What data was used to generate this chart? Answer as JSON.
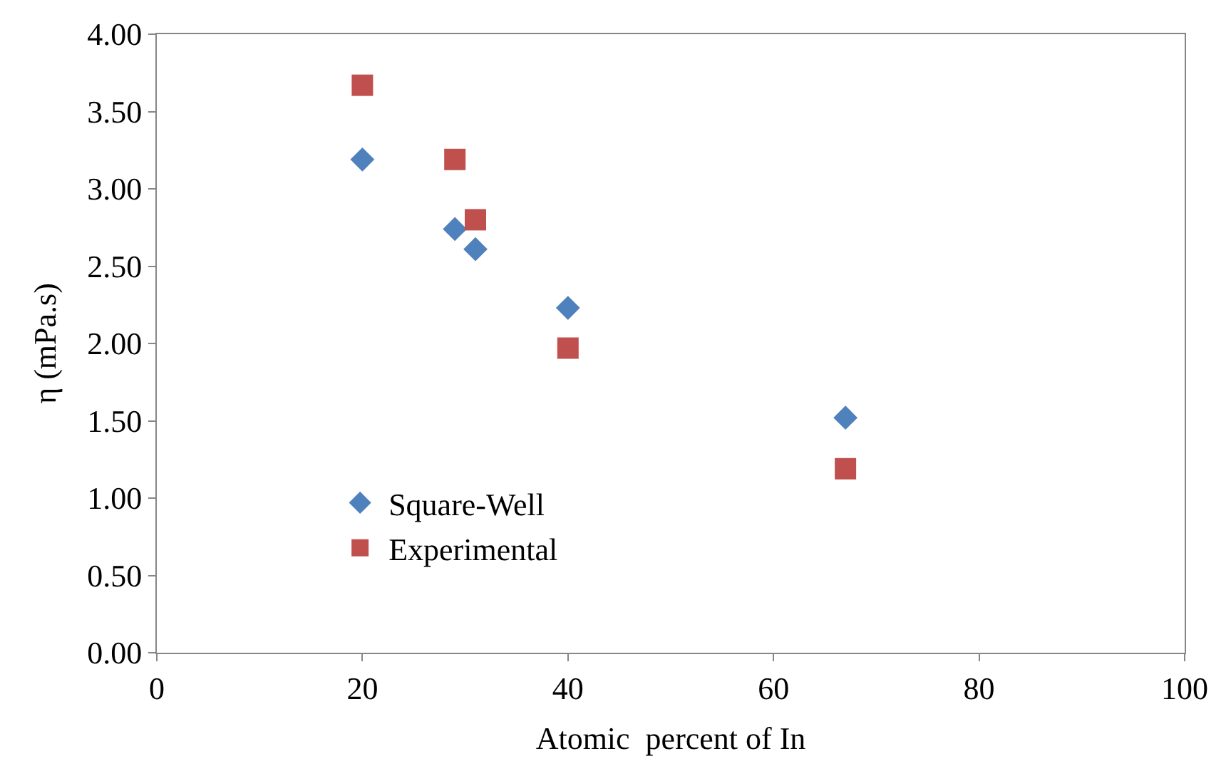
{
  "chart_data": {
    "type": "scatter",
    "xlabel": "Atomic  percent of In",
    "ylabel": "η (mPa.s)",
    "x": [
      20,
      29,
      31,
      40,
      67
    ],
    "series": [
      {
        "name": "Square-Well",
        "color": "#4f81bd",
        "marker": "diamond",
        "values": [
          3.19,
          2.74,
          2.61,
          2.23,
          1.52
        ]
      },
      {
        "name": "Experimental",
        "color": "#c0504d",
        "marker": "square",
        "values": [
          3.67,
          3.19,
          2.8,
          1.97,
          1.19
        ]
      }
    ],
    "xlim": [
      0,
      100
    ],
    "xticks": [
      0,
      20,
      40,
      60,
      80,
      100
    ],
    "ylim": [
      0,
      4
    ],
    "yticks": [
      {
        "value": 0,
        "label": "0.00"
      },
      {
        "value": 0.5,
        "label": "0.50"
      },
      {
        "value": 1,
        "label": "1.00"
      },
      {
        "value": 1.5,
        "label": "1.50"
      },
      {
        "value": 2,
        "label": "2.00"
      },
      {
        "value": 2.5,
        "label": "2.50"
      },
      {
        "value": 3,
        "label": "3.00"
      },
      {
        "value": 3.5,
        "label": "3.50"
      },
      {
        "value": 4,
        "label": "4.00"
      }
    ],
    "legend": "bottom left"
  }
}
